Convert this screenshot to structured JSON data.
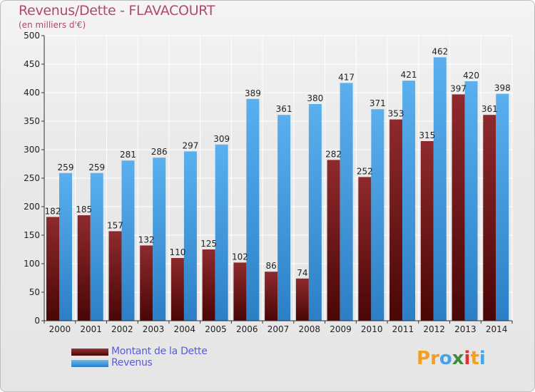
{
  "header": {
    "title": "Revenus/Dette - FLAVACOURT",
    "subtitle": "(en milliers d'€)"
  },
  "legend": {
    "items": [
      {
        "label": "Montant de la Dette",
        "color": "#7a1f22"
      },
      {
        "label": "Revenus",
        "color": "#4aa3e6"
      }
    ]
  },
  "logo": {
    "letters": [
      "P",
      "r",
      "o",
      "x",
      "i",
      "t",
      "i"
    ],
    "colors": [
      "#f0a020",
      "#f0a020",
      "#4aa3e6",
      "#3c8c3c",
      "#e03030",
      "#f0a020",
      "#4aa3e6"
    ]
  },
  "chart_data": {
    "type": "bar",
    "categories": [
      "2000",
      "2001",
      "2002",
      "2003",
      "2004",
      "2005",
      "2006",
      "2007",
      "2008",
      "2009",
      "2010",
      "2011",
      "2012",
      "2013",
      "2014"
    ],
    "series": [
      {
        "name": "Montant de la Dette",
        "color": "#7a1f22",
        "values": [
          182,
          185,
          157,
          132,
          110,
          125,
          102,
          86,
          74,
          282,
          252,
          353,
          315,
          397,
          361
        ]
      },
      {
        "name": "Revenus",
        "color": "#4aa3e6",
        "values": [
          259,
          259,
          281,
          286,
          297,
          309,
          389,
          361,
          380,
          417,
          371,
          421,
          462,
          420,
          398
        ]
      }
    ],
    "yticks": [
      0,
      50,
      100,
      150,
      200,
      250,
      300,
      350,
      400,
      450,
      500
    ],
    "ylim": [
      0,
      500
    ],
    "grid": true,
    "legend_position": "bottom-left"
  }
}
